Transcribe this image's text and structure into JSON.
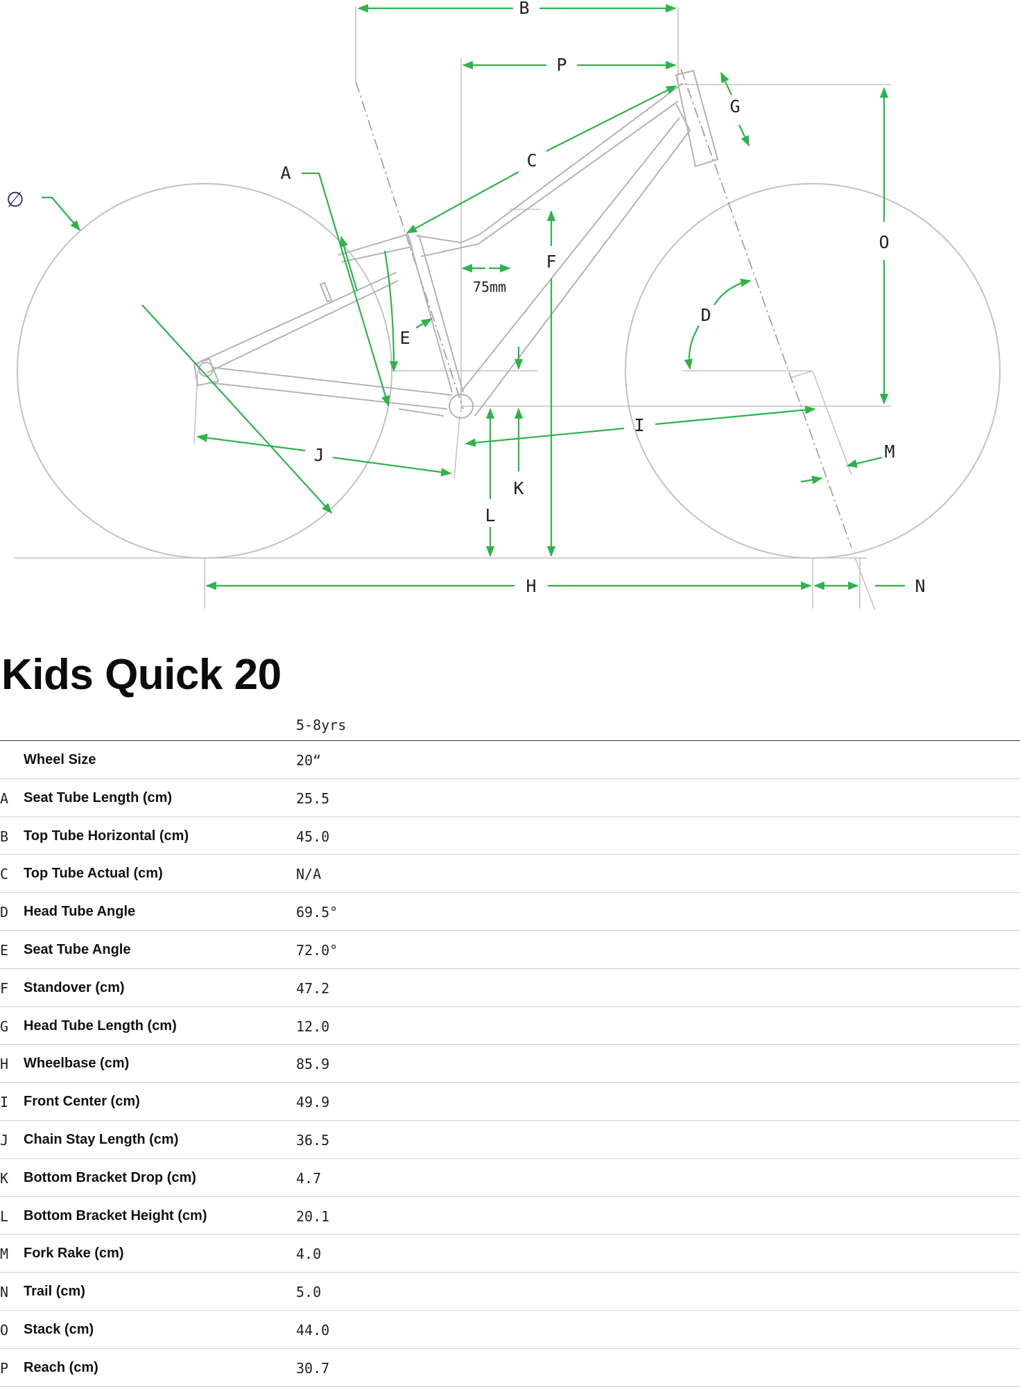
{
  "diagram": {
    "labels": {
      "A": "A",
      "B": "B",
      "C": "C",
      "D": "D",
      "E": "E",
      "F": "F",
      "G": "G",
      "H": "H",
      "I": "I",
      "J": "J",
      "K": "K",
      "L": "L",
      "M": "M",
      "N": "N",
      "O": "O",
      "P": "P",
      "wheel": "∅",
      "bb_offset": "75mm"
    },
    "colors": {
      "measure": "#2db34a",
      "frame": "#b3b3b3"
    }
  },
  "title": "Kids Quick 20",
  "size_header": "5-8yrs",
  "rows": [
    {
      "letter": "",
      "label": "Wheel Size",
      "value": "20“"
    },
    {
      "letter": "A",
      "label": "Seat Tube Length (cm)",
      "value": "25.5"
    },
    {
      "letter": "B",
      "label": "Top Tube Horizontal (cm)",
      "value": "45.0"
    },
    {
      "letter": "C",
      "label": "Top Tube Actual (cm)",
      "value": "N/A"
    },
    {
      "letter": "D",
      "label": "Head Tube Angle",
      "value": "69.5°"
    },
    {
      "letter": "E",
      "label": "Seat Tube Angle",
      "value": "72.0°"
    },
    {
      "letter": "F",
      "label": "Standover (cm)",
      "value": "47.2"
    },
    {
      "letter": "G",
      "label": "Head Tube Length (cm)",
      "value": "12.0"
    },
    {
      "letter": "H",
      "label": "Wheelbase (cm)",
      "value": "85.9"
    },
    {
      "letter": "I",
      "label": "Front Center (cm)",
      "value": "49.9"
    },
    {
      "letter": "J",
      "label": "Chain Stay Length (cm)",
      "value": "36.5"
    },
    {
      "letter": "K",
      "label": "Bottom Bracket Drop (cm)",
      "value": "4.7"
    },
    {
      "letter": "L",
      "label": "Bottom Bracket Height (cm)",
      "value": "20.1"
    },
    {
      "letter": "M",
      "label": "Fork Rake (cm)",
      "value": "4.0"
    },
    {
      "letter": "N",
      "label": "Trail (cm)",
      "value": "5.0"
    },
    {
      "letter": "O",
      "label": "Stack (cm)",
      "value": "44.0"
    },
    {
      "letter": "P",
      "label": "Reach (cm)",
      "value": "30.7"
    }
  ]
}
